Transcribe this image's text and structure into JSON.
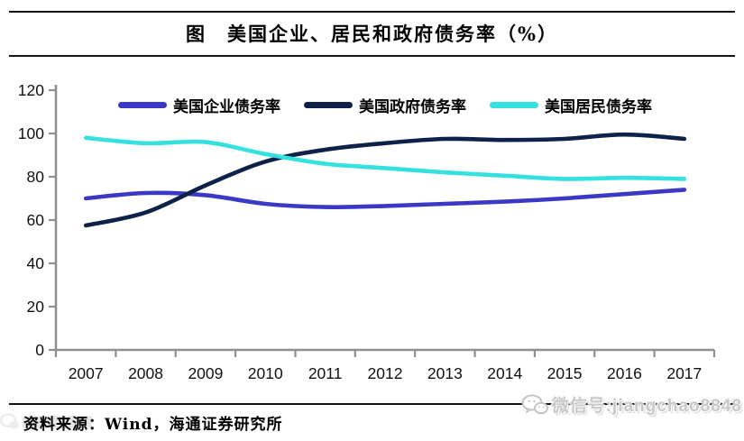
{
  "title": "图　美国企业、居民和政府债务率（%）",
  "source_note": "资料来源：Wind，海通证券研究所",
  "watermark": {
    "wechat_label": "微信号:jiangchao8848"
  },
  "colors": {
    "corporate": "#3c38c6",
    "government": "#0e2148",
    "household": "#34e1de",
    "axis": "#8f8f8f",
    "rule": "#141414"
  },
  "chart_data": {
    "type": "line",
    "title": "图　美国企业、居民和政府债务率（%）",
    "categories": [
      "2007",
      "2008",
      "2009",
      "2010",
      "2011",
      "2012",
      "2013",
      "2014",
      "2015",
      "2016",
      "2017"
    ],
    "series": [
      {
        "name": "美国企业债务率",
        "color": "#3c38c6",
        "values": [
          70,
          72.5,
          71.5,
          67.5,
          66,
          66.5,
          67.5,
          68.5,
          70,
          72,
          74
        ]
      },
      {
        "name": "美国政府债务率",
        "color": "#0e2148",
        "values": [
          57.5,
          63.5,
          76,
          87,
          92.5,
          95.5,
          97.5,
          97,
          97.5,
          99.5,
          97.5
        ]
      },
      {
        "name": "美国居民债务率",
        "color": "#34e1de",
        "values": [
          98,
          95.5,
          96,
          90.5,
          86,
          84,
          82,
          80.5,
          79,
          79.5,
          79
        ]
      }
    ],
    "xlabel": "",
    "ylabel": "",
    "ylim": [
      0,
      120
    ],
    "ytick_step": 20,
    "grid": false,
    "legend_position": "top-center"
  }
}
